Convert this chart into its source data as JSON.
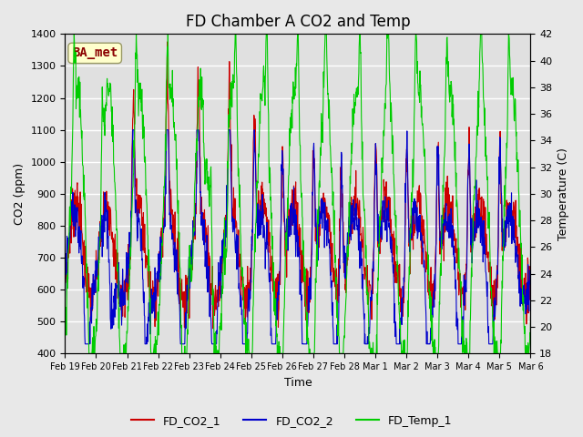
{
  "title": "FD Chamber A CO2 and Temp",
  "xlabel": "Time",
  "ylabel_left": "CO2 (ppm)",
  "ylabel_right": "Temperature (C)",
  "ylim_left": [
    400,
    1400
  ],
  "ylim_right": [
    18,
    42
  ],
  "yticks_left": [
    400,
    500,
    600,
    700,
    800,
    900,
    1000,
    1100,
    1200,
    1300,
    1400
  ],
  "yticks_right": [
    18,
    20,
    22,
    24,
    26,
    28,
    30,
    32,
    34,
    36,
    38,
    40,
    42
  ],
  "xtick_labels": [
    "Feb 19",
    "Feb 20",
    "Feb 21",
    "Feb 22",
    "Feb 23",
    "Feb 24",
    "Feb 25",
    "Feb 26",
    "Feb 27",
    "Feb 28",
    "Mar 1",
    "Mar 2",
    "Mar 3",
    "Mar 4",
    "Mar 5",
    "Mar 6"
  ],
  "annotation_text": "BA_met",
  "annotation_color": "#8B0000",
  "annotation_bg": "#FFFFCC",
  "annotation_edge": "#999966",
  "line_colors": {
    "FD_CO2_1": "#CC0000",
    "FD_CO2_2": "#0000CC",
    "FD_Temp_1": "#00CC00"
  },
  "legend_labels": [
    "FD_CO2_1",
    "FD_CO2_2",
    "FD_Temp_1"
  ],
  "fig_bg_color": "#E8E8E8",
  "plot_bg_color": "#E0E0E0",
  "grid_color": "#FFFFFF",
  "title_fontsize": 12,
  "axis_fontsize": 9,
  "tick_fontsize": 8,
  "legend_fontsize": 9,
  "line_width": 0.8
}
